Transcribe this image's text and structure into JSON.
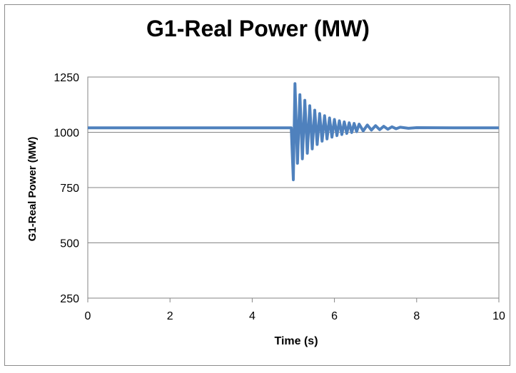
{
  "chart_data": {
    "type": "line",
    "title": "G1-Real Power (MW)",
    "xlabel": "Time (s)",
    "ylabel": "G1-Real Power (MW)",
    "xlim": [
      0,
      10
    ],
    "ylim": [
      250,
      1250
    ],
    "xticks": [
      "0",
      "2",
      "4",
      "6",
      "8",
      "10"
    ],
    "yticks": [
      "250",
      "500",
      "750",
      "1000",
      "1250"
    ],
    "grid": "horizontal",
    "series": [
      {
        "color": "#4f81bd",
        "x": [
          0,
          1,
          2,
          3,
          4,
          4.95,
          5.0,
          5.04,
          5.1,
          5.16,
          5.22,
          5.28,
          5.34,
          5.4,
          5.46,
          5.52,
          5.58,
          5.64,
          5.7,
          5.76,
          5.82,
          5.88,
          5.94,
          6.0,
          6.06,
          6.12,
          6.18,
          6.24,
          6.3,
          6.36,
          6.42,
          6.48,
          6.54,
          6.6,
          6.7,
          6.8,
          6.9,
          7.0,
          7.1,
          7.2,
          7.3,
          7.4,
          7.5,
          7.6,
          7.8,
          8.0,
          9.0,
          10.0
        ],
        "y": [
          1020,
          1020,
          1020,
          1020,
          1020,
          1020,
          785,
          1220,
          860,
          1170,
          880,
          1145,
          905,
          1120,
          925,
          1100,
          945,
          1085,
          960,
          1075,
          970,
          1065,
          978,
          1058,
          985,
          1052,
          990,
          1047,
          995,
          1043,
          999,
          1040,
          1003,
          1037,
          1006,
          1033,
          1010,
          1030,
          1012,
          1027,
          1014,
          1025,
          1016,
          1023,
          1018,
          1021,
          1020,
          1020
        ]
      }
    ]
  }
}
